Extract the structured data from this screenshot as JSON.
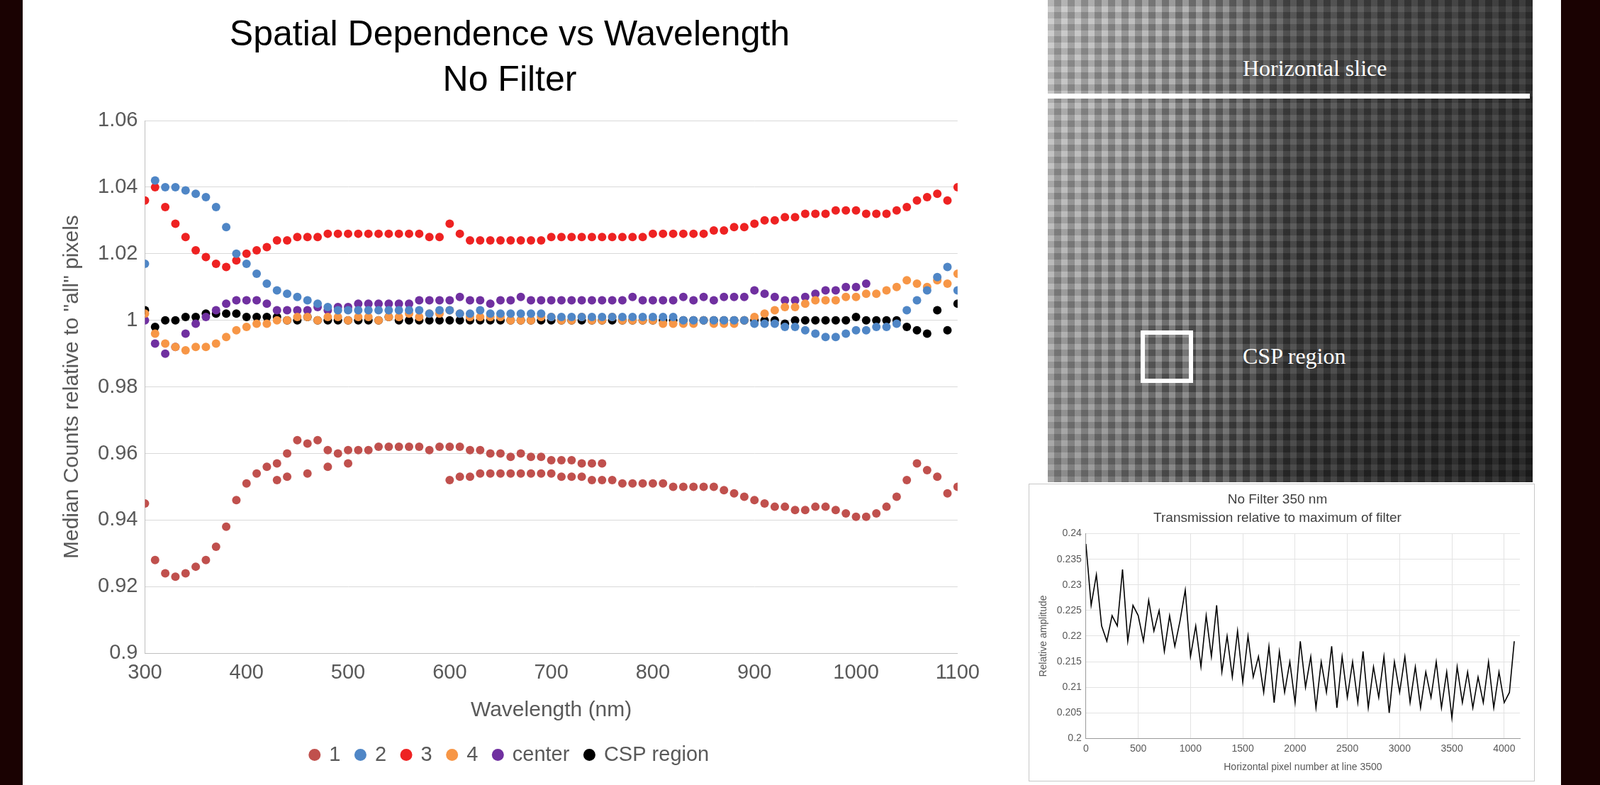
{
  "chart_data": [
    {
      "type": "scatter",
      "title": "Spatial Dependence vs Wavelength",
      "subtitle": "No Filter",
      "x_label": "Wavelength (nm)",
      "y_label": "Median Counts relative to \"all\" pixels",
      "x": [
        300,
        310,
        320,
        330,
        340,
        350,
        360,
        370,
        380,
        390,
        400,
        410,
        420,
        430,
        440,
        450,
        460,
        470,
        480,
        490,
        500,
        510,
        520,
        530,
        540,
        550,
        560,
        570,
        580,
        590,
        600,
        610,
        620,
        630,
        640,
        650,
        660,
        670,
        680,
        690,
        700,
        710,
        720,
        730,
        740,
        750,
        760,
        770,
        780,
        790,
        800,
        810,
        820,
        830,
        840,
        850,
        860,
        870,
        880,
        890,
        900,
        910,
        920,
        930,
        940,
        950,
        960,
        970,
        980,
        990,
        1000,
        1010,
        1020,
        1030,
        1040,
        1050,
        1060,
        1070,
        1080,
        1090,
        1100
      ],
      "series": [
        {
          "name": "1",
          "color": "#c0504d",
          "x": [
            300,
            310,
            320,
            330,
            340,
            350,
            360,
            370,
            380,
            390,
            400,
            410,
            420,
            430,
            440,
            450,
            460,
            470,
            480,
            490,
            500,
            510,
            520,
            530,
            540,
            550,
            560,
            570,
            580,
            590,
            600,
            610,
            620,
            630,
            640,
            650,
            660,
            670,
            680,
            690,
            700,
            710,
            720,
            730,
            740,
            750,
            760,
            770,
            780,
            790,
            800,
            810,
            820,
            830,
            840,
            850,
            860,
            870,
            880,
            890,
            900,
            910,
            920,
            930,
            940,
            950,
            960,
            970,
            980,
            990,
            1000,
            1010,
            1020,
            1030,
            1040,
            1050,
            1060,
            1070,
            1080,
            1090,
            1100,
            600,
            610,
            620,
            630,
            640,
            650,
            660,
            670,
            680,
            690,
            700,
            710,
            720,
            730,
            740,
            750,
            430,
            440,
            460,
            480,
            500
          ],
          "values": [
            0.945,
            0.928,
            0.924,
            0.923,
            0.924,
            0.926,
            0.928,
            0.932,
            0.938,
            0.946,
            0.951,
            0.954,
            0.956,
            0.957,
            0.96,
            0.964,
            0.963,
            0.964,
            0.961,
            0.96,
            0.961,
            0.961,
            0.961,
            0.962,
            0.962,
            0.962,
            0.962,
            0.962,
            0.961,
            0.962,
            0.952,
            0.953,
            0.953,
            0.954,
            0.954,
            0.954,
            0.954,
            0.954,
            0.954,
            0.954,
            0.954,
            0.953,
            0.953,
            0.953,
            0.952,
            0.952,
            0.952,
            0.951,
            0.951,
            0.951,
            0.951,
            0.951,
            0.95,
            0.95,
            0.95,
            0.95,
            0.95,
            0.949,
            0.948,
            0.947,
            0.946,
            0.945,
            0.944,
            0.944,
            0.943,
            0.943,
            0.944,
            0.944,
            0.943,
            0.942,
            0.941,
            0.941,
            0.942,
            0.944,
            0.947,
            0.952,
            0.957,
            0.955,
            0.953,
            0.948,
            0.95,
            0.962,
            0.962,
            0.961,
            0.961,
            0.96,
            0.96,
            0.959,
            0.96,
            0.959,
            0.959,
            0.958,
            0.958,
            0.958,
            0.957,
            0.957,
            0.957,
            0.952,
            0.953,
            0.954,
            0.956,
            0.957
          ]
        },
        {
          "name": "2",
          "color": "#4f86c6",
          "values": [
            1.017,
            1.042,
            1.04,
            1.04,
            1.039,
            1.038,
            1.037,
            1.034,
            1.028,
            1.02,
            1.017,
            1.014,
            1.011,
            1.009,
            1.008,
            1.007,
            1.006,
            1.005,
            1.004,
            1.003,
            1.003,
            1.003,
            1.003,
            1.003,
            1.003,
            1.003,
            1.003,
            1.003,
            1.002,
            1.003,
            1.003,
            1.002,
            1.002,
            1.003,
            1.002,
            1.002,
            1.002,
            1.002,
            1.002,
            1.002,
            1.001,
            1.001,
            1.001,
            1.001,
            1.001,
            1.001,
            1.001,
            1.001,
            1.001,
            1.001,
            1.001,
            1.001,
            1.001,
            1.0,
            1.0,
            1.0,
            1.0,
            1.0,
            1.0,
            1.0,
            0.999,
            0.999,
            0.999,
            0.998,
            0.998,
            0.997,
            0.996,
            0.995,
            0.995,
            0.996,
            0.997,
            0.997,
            0.998,
            0.998,
            0.999,
            1.003,
            1.006,
            1.009,
            1.013,
            1.016,
            1.009
          ]
        },
        {
          "name": "3",
          "color": "#ee2222",
          "values": [
            1.036,
            1.04,
            1.034,
            1.029,
            1.025,
            1.021,
            1.019,
            1.017,
            1.016,
            1.018,
            1.02,
            1.021,
            1.022,
            1.024,
            1.024,
            1.025,
            1.025,
            1.025,
            1.026,
            1.026,
            1.026,
            1.026,
            1.026,
            1.026,
            1.026,
            1.026,
            1.026,
            1.026,
            1.025,
            1.025,
            1.029,
            1.026,
            1.024,
            1.024,
            1.024,
            1.024,
            1.024,
            1.024,
            1.024,
            1.024,
            1.025,
            1.025,
            1.025,
            1.025,
            1.025,
            1.025,
            1.025,
            1.025,
            1.025,
            1.025,
            1.026,
            1.026,
            1.026,
            1.026,
            1.026,
            1.026,
            1.027,
            1.027,
            1.028,
            1.028,
            1.029,
            1.03,
            1.03,
            1.031,
            1.031,
            1.032,
            1.032,
            1.032,
            1.033,
            1.033,
            1.033,
            1.032,
            1.032,
            1.032,
            1.033,
            1.034,
            1.036,
            1.037,
            1.038,
            1.036,
            1.04
          ]
        },
        {
          "name": "4",
          "color": "#f79646",
          "values": [
            1.002,
            0.996,
            0.993,
            0.992,
            0.991,
            0.992,
            0.992,
            0.993,
            0.995,
            0.997,
            0.998,
            0.999,
            0.999,
            1.0,
            1.0,
            1.001,
            1.001,
            1.0,
            1.001,
            1.001,
            1.0,
            1.001,
            1.001,
            1.0,
            1.001,
            1.001,
            1.002,
            1.001,
            1.002,
            1.002,
            1.003,
            1.002,
            1.001,
            1.001,
            1.001,
            1.001,
            1.0,
            1.0,
            1.0,
            1.001,
            1.001,
            1.0,
            1.0,
            1.001,
            1.0,
            1.0,
            1.001,
            1.0,
            1.0,
            1.0,
            1.0,
            0.999,
            0.999,
            0.999,
            0.999,
            1.0,
            0.999,
            0.999,
            0.999,
            1.0,
            1.001,
            1.002,
            1.003,
            1.004,
            1.004,
            1.005,
            1.006,
            1.006,
            1.006,
            1.007,
            1.007,
            1.008,
            1.008,
            1.009,
            1.01,
            1.012,
            1.011,
            1.01,
            1.012,
            1.011,
            1.014
          ]
        },
        {
          "name": "center",
          "color": "#7030a0",
          "values": [
            1.0,
            0.993,
            0.99,
            0.992,
            0.996,
            0.999,
            1.001,
            1.003,
            1.005,
            1.006,
            1.006,
            1.006,
            1.005,
            1.003,
            1.003,
            1.003,
            1.003,
            1.004,
            1.003,
            1.004,
            1.004,
            1.005,
            1.005,
            1.005,
            1.005,
            1.005,
            1.005,
            1.006,
            1.006,
            1.006,
            1.006,
            1.007,
            1.006,
            1.006,
            1.005,
            1.006,
            1.006,
            1.007,
            1.006,
            1.006,
            1.006,
            1.006,
            1.006,
            1.006,
            1.006,
            1.006,
            1.006,
            1.006,
            1.007,
            1.006,
            1.006,
            1.006,
            1.006,
            1.007,
            1.006,
            1.007,
            1.006,
            1.007,
            1.007,
            1.007,
            1.009,
            1.008,
            1.007,
            1.006,
            1.006,
            1.007,
            1.008,
            1.009,
            1.009,
            1.01,
            1.01,
            1.011,
            null,
            null,
            null,
            null,
            null,
            null,
            null,
            null,
            null
          ]
        },
        {
          "name": "CSP region",
          "color": "#000000",
          "values": [
            1.003,
            0.998,
            1.0,
            1.0,
            1.001,
            1.001,
            1.002,
            1.002,
            1.002,
            1.002,
            1.001,
            1.001,
            1.001,
            1.001,
            1.0,
            1.0,
            1.001,
            1.0,
            1.0,
            1.0,
            1.0,
            1.0,
            1.0,
            1.0,
            1.001,
            1.0,
            1.0,
            1.0,
            1.0,
            1.0,
            1.0,
            1.0,
            1.0,
            1.0,
            1.0,
            1.0,
            1.0,
            1.0,
            1.0,
            1.0,
            1.0,
            1.0,
            1.0,
            1.0,
            1.0,
            1.0,
            1.0,
            1.0,
            1.0,
            1.0,
            1.0,
            1.0,
            1.0,
            1.0,
            1.0,
            1.0,
            1.0,
            1.0,
            1.0,
            1.0,
            1.0,
            1.0,
            1.0,
            0.999,
            1.0,
            1.0,
            1.0,
            1.0,
            1.0,
            1.0,
            1.001,
            1.0,
            1.0,
            1.0,
            1.0,
            0.998,
            0.997,
            0.996,
            1.003,
            0.997,
            1.005
          ]
        }
      ],
      "marker": "circle",
      "xlim": [
        300,
        1100
      ],
      "xticks": [
        300,
        400,
        500,
        600,
        700,
        800,
        900,
        1000,
        1100
      ],
      "ylim": [
        0.9,
        1.06
      ],
      "yticks": [
        0.9,
        0.92,
        0.94,
        0.96,
        0.98,
        1,
        1.02,
        1.04,
        1.06
      ],
      "grid": "y",
      "legend": "bottom"
    },
    {
      "type": "line",
      "title": "No Filter 350 nm",
      "subtitle": "Transmission relative to maximum of filter",
      "x_label": "Horizontal pixel number at line 3500",
      "y_label": "Relative amplitude",
      "x": [
        0,
        50,
        100,
        150,
        200,
        250,
        300,
        350,
        400,
        450,
        500,
        550,
        600,
        650,
        700,
        750,
        800,
        850,
        900,
        950,
        1000,
        1050,
        1100,
        1150,
        1200,
        1250,
        1300,
        1350,
        1400,
        1450,
        1500,
        1550,
        1600,
        1650,
        1700,
        1750,
        1800,
        1850,
        1900,
        1950,
        2000,
        2050,
        2100,
        2150,
        2200,
        2250,
        2300,
        2350,
        2400,
        2450,
        2500,
        2550,
        2600,
        2650,
        2700,
        2750,
        2800,
        2850,
        2900,
        2950,
        3000,
        3050,
        3100,
        3150,
        3200,
        3250,
        3300,
        3350,
        3400,
        3450,
        3500,
        3550,
        3600,
        3650,
        3700,
        3750,
        3800,
        3850,
        3900,
        3950,
        4000,
        4050,
        4096
      ],
      "values": [
        0.238,
        0.226,
        0.232,
        0.222,
        0.219,
        0.224,
        0.222,
        0.233,
        0.219,
        0.226,
        0.224,
        0.219,
        0.227,
        0.221,
        0.225,
        0.217,
        0.224,
        0.218,
        0.223,
        0.229,
        0.216,
        0.222,
        0.214,
        0.224,
        0.216,
        0.226,
        0.213,
        0.22,
        0.212,
        0.221,
        0.211,
        0.22,
        0.212,
        0.216,
        0.209,
        0.218,
        0.207,
        0.217,
        0.209,
        0.215,
        0.207,
        0.219,
        0.21,
        0.216,
        0.206,
        0.215,
        0.209,
        0.218,
        0.206,
        0.216,
        0.208,
        0.215,
        0.207,
        0.217,
        0.206,
        0.214,
        0.208,
        0.216,
        0.205,
        0.215,
        0.209,
        0.216,
        0.207,
        0.214,
        0.206,
        0.213,
        0.208,
        0.215,
        0.206,
        0.213,
        0.204,
        0.214,
        0.207,
        0.213,
        0.206,
        0.212,
        0.207,
        0.215,
        0.206,
        0.213,
        0.207,
        0.209,
        0.219
      ],
      "color": "#000000",
      "line_style": "solid",
      "xlim": [
        0,
        4150
      ],
      "xticks": [
        0,
        500,
        1000,
        1500,
        2000,
        2500,
        3000,
        3500,
        4000
      ],
      "ylim": [
        0.2,
        0.24
      ],
      "yticks": [
        0.2,
        0.205,
        0.21,
        0.215,
        0.22,
        0.225,
        0.23,
        0.235,
        0.24
      ],
      "grid": true
    }
  ],
  "image_panel": {
    "slice_label": "Horizontal slice",
    "region_label": "CSP region"
  }
}
